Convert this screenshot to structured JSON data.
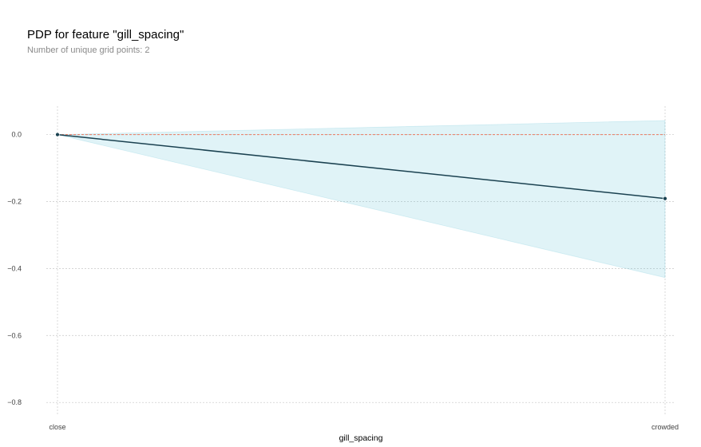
{
  "header": {
    "title": "PDP for feature \"gill_spacing\"",
    "subtitle": "Number of unique grid points: 2"
  },
  "chart_data": {
    "type": "line",
    "title": "PDP for feature \"gill_spacing\"",
    "subtitle": "Number of unique grid points: 2",
    "xlabel": "gill_spacing",
    "ylabel": "",
    "categories": [
      "close",
      "crowded"
    ],
    "series": [
      {
        "values": [
          0.0,
          -0.191
        ]
      }
    ],
    "band_upper": [
      0.0,
      0.042
    ],
    "band_lower": [
      0.0,
      -0.427
    ],
    "reference_line": 0.0,
    "yticks": [
      0.0,
      -0.2,
      -0.4,
      -0.6,
      -0.8
    ],
    "ytick_labels": [
      "0.0",
      "−0.2",
      "−0.4",
      "−0.6",
      "−0.8"
    ],
    "ylim": [
      -0.84,
      0.085
    ],
    "grid": true,
    "colors": {
      "line": "#1a4150",
      "band": "#66c2d7",
      "reference": "#ec7b62",
      "grid": "#cfcfcf"
    }
  }
}
